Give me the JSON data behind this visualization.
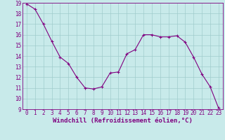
{
  "x": [
    0,
    1,
    2,
    3,
    4,
    5,
    6,
    7,
    8,
    9,
    10,
    11,
    12,
    13,
    14,
    15,
    16,
    17,
    18,
    19,
    20,
    21,
    22,
    23
  ],
  "y": [
    18.9,
    18.4,
    17.0,
    15.4,
    13.9,
    13.3,
    12.0,
    11.0,
    10.9,
    11.1,
    12.4,
    12.5,
    14.2,
    14.6,
    16.0,
    16.0,
    15.8,
    15.8,
    15.9,
    15.3,
    13.9,
    12.3,
    11.1,
    9.1
  ],
  "line_color": "#800080",
  "marker_color": "#800080",
  "bg_color": "#c8eaea",
  "grid_color": "#a0cccc",
  "xlabel": "Windchill (Refroidissement éolien,°C)",
  "ylabel": "",
  "ylim": [
    9,
    19
  ],
  "xlim": [
    -0.5,
    23.5
  ],
  "yticks": [
    9,
    10,
    11,
    12,
    13,
    14,
    15,
    16,
    17,
    18,
    19
  ],
  "xticks": [
    0,
    1,
    2,
    3,
    4,
    5,
    6,
    7,
    8,
    9,
    10,
    11,
    12,
    13,
    14,
    15,
    16,
    17,
    18,
    19,
    20,
    21,
    22,
    23
  ],
  "tick_label_size": 5.5,
  "xlabel_size": 6.5,
  "axis_label_color": "#800080",
  "spine_color": "#800080",
  "title": ""
}
